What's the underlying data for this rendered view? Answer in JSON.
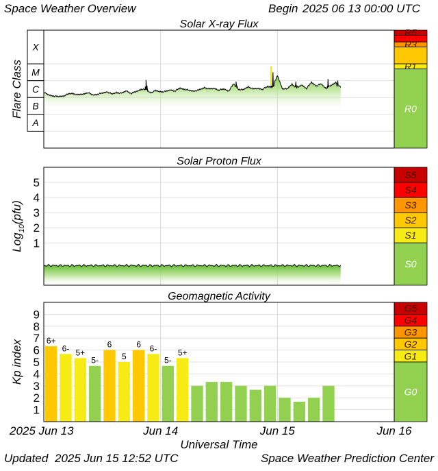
{
  "header": {
    "title": "Space Weather Overview",
    "begin_label": "Begin",
    "begin_value": "2025 06 13 00:00 UTC"
  },
  "footer": {
    "updated_label": "Updated",
    "updated_value": "2025 Jun 15 12:52 UTC",
    "source": "Space Weather Prediction Center"
  },
  "xaxis": {
    "title": "Universal Time",
    "ticks": [
      {
        "t": 0,
        "label": "2025 Jun 13"
      },
      {
        "t": 24,
        "label": "Jun 14"
      },
      {
        "t": 48,
        "label": "Jun 15"
      },
      {
        "t": 72,
        "label": "Jun 16"
      }
    ],
    "range_hours": [
      0,
      72
    ]
  },
  "colors": {
    "green": "#92d050",
    "yellow": "#f6eb14",
    "amber": "#ffc800",
    "orange": "#ff9600",
    "red": "#ff0000",
    "dark_red": "#c80000"
  },
  "chart_data": [
    {
      "type": "line",
      "title": "Solar X-ray Flux",
      "ylabel": "Flare Class",
      "y_scale": "log10 W/m^2",
      "ylim": [
        -9,
        -2
      ],
      "class_labels": [
        {
          "label": "X",
          "from": -4,
          "to": -2
        },
        {
          "label": "M",
          "from": -5,
          "to": -4
        },
        {
          "label": "C",
          "from": -6,
          "to": -5
        },
        {
          "label": "B",
          "from": -7,
          "to": -6
        },
        {
          "label": "A",
          "from": -8,
          "to": -7
        }
      ],
      "scale_bar": [
        {
          "label": "R5",
          "from": -2.0,
          "to": -2.3,
          "color": "#c80000"
        },
        {
          "label": "",
          "from": -2.3,
          "to": -2.7,
          "color": "#ff0000"
        },
        {
          "label": "R3",
          "from": -2.7,
          "to": -3.0,
          "color": "#ff9600"
        },
        {
          "label": "",
          "from": -3.0,
          "to": -4.0,
          "color": "#ffc800"
        },
        {
          "label": "R1",
          "from": -4.0,
          "to": -4.3,
          "color": "#f6eb14"
        },
        {
          "label": "R0",
          "from": -4.3,
          "to": -9.0,
          "color": "#92d050"
        }
      ],
      "x": [
        0,
        1,
        2,
        3,
        4,
        5,
        6,
        7,
        8,
        9,
        10,
        11,
        12,
        13,
        14,
        15,
        16,
        17,
        18,
        19,
        20,
        21,
        22,
        23,
        24,
        25,
        26,
        27,
        28,
        29,
        30,
        31,
        32,
        33,
        34,
        35,
        36,
        37,
        38,
        39,
        40,
        41,
        42,
        43,
        44,
        45,
        46,
        47,
        48,
        49,
        50,
        51,
        52,
        53,
        54,
        55,
        56,
        57,
        58,
        59,
        60,
        61
      ],
      "values": [
        -5.7,
        -5.85,
        -5.9,
        -5.95,
        -5.9,
        -5.8,
        -5.75,
        -5.85,
        -5.8,
        -5.7,
        -5.85,
        -5.8,
        -5.75,
        -5.65,
        -5.8,
        -5.7,
        -5.75,
        -5.6,
        -5.75,
        -5.65,
        -5.5,
        -5.55,
        -5.7,
        -5.6,
        -5.65,
        -5.65,
        -5.55,
        -5.6,
        -5.45,
        -5.5,
        -5.6,
        -5.6,
        -5.55,
        -5.4,
        -5.5,
        -5.45,
        -5.55,
        -5.5,
        -5.6,
        -5.2,
        -5.5,
        -5.55,
        -5.35,
        -5.5,
        -5.45,
        -5.5,
        -5.35,
        -5.4,
        -4.7,
        -5.45,
        -5.5,
        -5.2,
        -5.45,
        -5.25,
        -5.45,
        -5.1,
        -5.3,
        -5.2,
        -5.45,
        -5.3,
        -5.1,
        -5.4
      ],
      "peaks": [
        {
          "t": 21.0,
          "value": -4.95
        },
        {
          "t": 39.5,
          "value": -5.05
        },
        {
          "t": 46.7,
          "value": -4.15
        },
        {
          "t": 47.1,
          "value": -4.5
        },
        {
          "t": 51.8,
          "value": -5.05
        },
        {
          "t": 58.4,
          "value": -4.9
        },
        {
          "t": 60.4,
          "value": -5.0
        }
      ]
    },
    {
      "type": "line",
      "title": "Solar Proton Flux",
      "ylabel": "Log10(pfu)",
      "ylabel_base": "Log",
      "ylabel_sub": "10",
      "ylabel_unit": "(pfu)",
      "ylim": [
        -1.8,
        6
      ],
      "ytick_labels": [
        "1",
        "2",
        "3",
        "4",
        "5"
      ],
      "yticks": [
        1,
        2,
        3,
        4,
        5
      ],
      "scale_bar": [
        {
          "label": "S5",
          "from": 6,
          "to": 5,
          "color": "#c80000"
        },
        {
          "label": "S4",
          "from": 5,
          "to": 4,
          "color": "#ff0000"
        },
        {
          "label": "S3",
          "from": 4,
          "to": 3,
          "color": "#ff9600"
        },
        {
          "label": "S2",
          "from": 3,
          "to": 2,
          "color": "#ffc800"
        },
        {
          "label": "S1",
          "from": 2,
          "to": 1,
          "color": "#f6eb14"
        },
        {
          "label": "S0",
          "from": 1,
          "to": -1.8,
          "color": "#92d050"
        }
      ],
      "x": [
        0,
        61
      ],
      "values": [
        -0.5,
        -0.5
      ]
    },
    {
      "type": "bar",
      "title": "Geomagnetic Activity",
      "ylabel": "Kp index",
      "ylim": [
        0,
        10
      ],
      "ytick_labels": [
        "1",
        "2",
        "3",
        "4",
        "5",
        "6",
        "7",
        "8",
        "9"
      ],
      "yticks": [
        1,
        2,
        3,
        4,
        5,
        6,
        7,
        8,
        9
      ],
      "scale_bar": [
        {
          "label": "G5",
          "from": 10,
          "to": 9,
          "color": "#c80000"
        },
        {
          "label": "G4",
          "from": 9,
          "to": 8,
          "color": "#ff0000"
        },
        {
          "label": "G3",
          "from": 8,
          "to": 7,
          "color": "#ff9600"
        },
        {
          "label": "G2",
          "from": 7,
          "to": 6,
          "color": "#ffc800"
        },
        {
          "label": "G1",
          "from": 6,
          "to": 5,
          "color": "#f6eb14"
        },
        {
          "label": "G0",
          "from": 5,
          "to": 0,
          "color": "#92d050"
        }
      ],
      "bars": [
        {
          "t": 0,
          "value": 6.33,
          "label": "6+"
        },
        {
          "t": 3,
          "value": 5.67,
          "label": "6-"
        },
        {
          "t": 6,
          "value": 5.33,
          "label": "5+"
        },
        {
          "t": 9,
          "value": 4.67,
          "label": "5-"
        },
        {
          "t": 12,
          "value": 6.0,
          "label": "6"
        },
        {
          "t": 15,
          "value": 5.0,
          "label": "5"
        },
        {
          "t": 18,
          "value": 6.0,
          "label": "6"
        },
        {
          "t": 21,
          "value": 5.67,
          "label": "6-"
        },
        {
          "t": 24,
          "value": 4.67,
          "label": "5-"
        },
        {
          "t": 27,
          "value": 5.33,
          "label": "5+"
        },
        {
          "t": 30,
          "value": 3.0,
          "label": ""
        },
        {
          "t": 33,
          "value": 3.33,
          "label": ""
        },
        {
          "t": 36,
          "value": 3.33,
          "label": ""
        },
        {
          "t": 39,
          "value": 3.0,
          "label": ""
        },
        {
          "t": 42,
          "value": 2.67,
          "label": ""
        },
        {
          "t": 45,
          "value": 3.0,
          "label": ""
        },
        {
          "t": 48,
          "value": 2.0,
          "label": ""
        },
        {
          "t": 51,
          "value": 1.67,
          "label": ""
        },
        {
          "t": 54,
          "value": 2.0,
          "label": ""
        },
        {
          "t": 57,
          "value": 3.0,
          "label": ""
        }
      ]
    }
  ]
}
